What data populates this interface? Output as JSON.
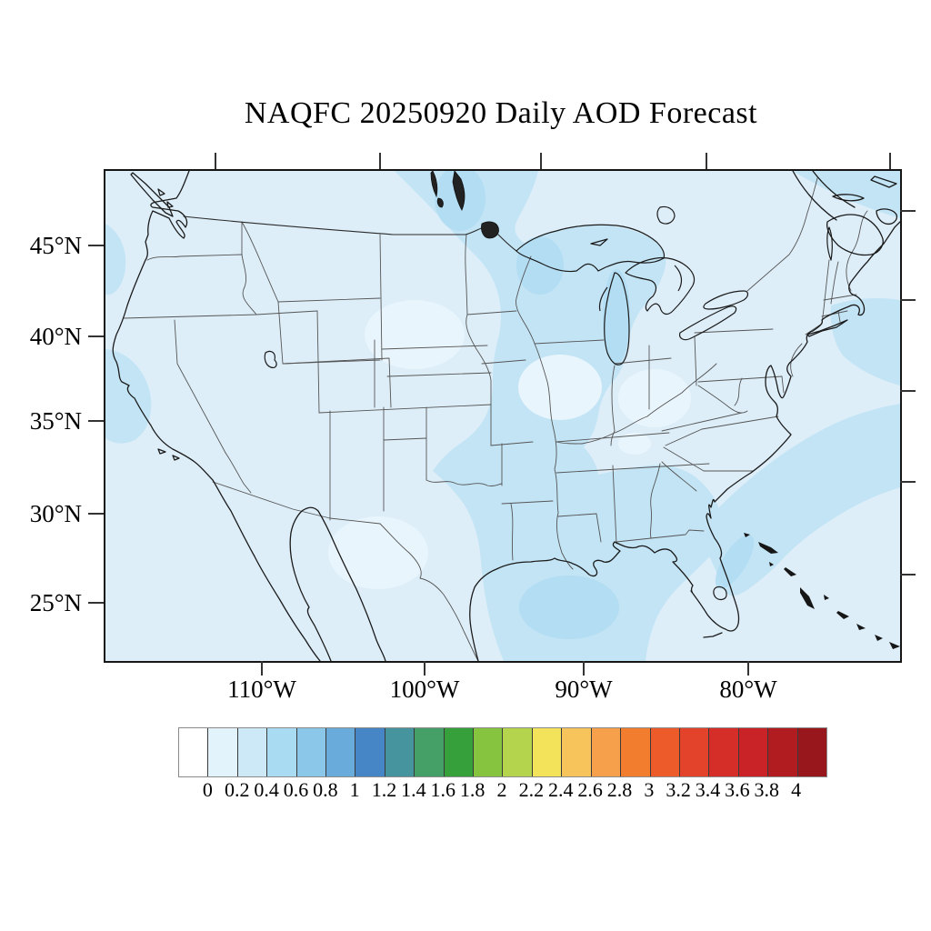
{
  "title": "NAQFC 20250920 Daily AOD Forecast",
  "map": {
    "y_axis_ticks": [
      "45°N",
      "40°N",
      "35°N",
      "30°N",
      "25°N"
    ],
    "x_axis_ticks": [
      "110°W",
      "100°W",
      "90°W",
      "80°W"
    ],
    "region": "Contiguous United States with southern Canada, northern Mexico, Bahamas",
    "fill_colors": {
      "aod_0_02": "#ddeef9",
      "aod_02_04": "#c2e4f5",
      "aod_04_06": "#b0dcf2",
      "aod_below_0_light": "#e9f5fc",
      "coastline": "#1b1b1b",
      "state_border": "#555555"
    }
  },
  "colorbar": {
    "labels": [
      "0",
      "0.2",
      "0.4",
      "0.6",
      "0.8",
      "1",
      "1.2",
      "1.4",
      "1.6",
      "1.8",
      "2",
      "2.2",
      "2.4",
      "2.6",
      "2.8",
      "3",
      "3.2",
      "3.4",
      "3.6",
      "3.8",
      "4"
    ],
    "colors": [
      "#ffffff",
      "#e2f3fb",
      "#cde9f7",
      "#a9dbf3",
      "#8bc7e8",
      "#69abdb",
      "#4786c6",
      "#45949e",
      "#44a066",
      "#36a13b",
      "#86c440",
      "#b4d44d",
      "#f3e35b",
      "#f6c45a",
      "#f7a04b",
      "#f37d2f",
      "#ee5b2a",
      "#e2432a",
      "#d52e28",
      "#c92327",
      "#b01c20",
      "#98171c"
    ]
  },
  "chart_data": {
    "type": "heatmap",
    "title": "NAQFC 20250920 Daily AOD Forecast",
    "variable": "Daily Aerosol Optical Depth (AOD) forecast",
    "scale_min": 0,
    "scale_max": 4,
    "scale_step": 0.2,
    "lat_ticks_deg_n": [
      45,
      40,
      35,
      30,
      25
    ],
    "lon_ticks_deg_w": [
      110,
      100,
      90,
      80
    ],
    "legend_position": "bottom",
    "observed_pattern": "AOD mostly 0-0.2 (palest blue) over CONUS; 0.2-0.4 bands over Manitoba/upper Midwest and Great Lakes, a central corridor from Minnesota through Missouri/Arkansas/east Texas into the Gulf of Mexico, the southeastern states and western Atlantic offshore, and small offshore Pacific patches near California and Oregon; no values above 0.6 anywhere"
  }
}
